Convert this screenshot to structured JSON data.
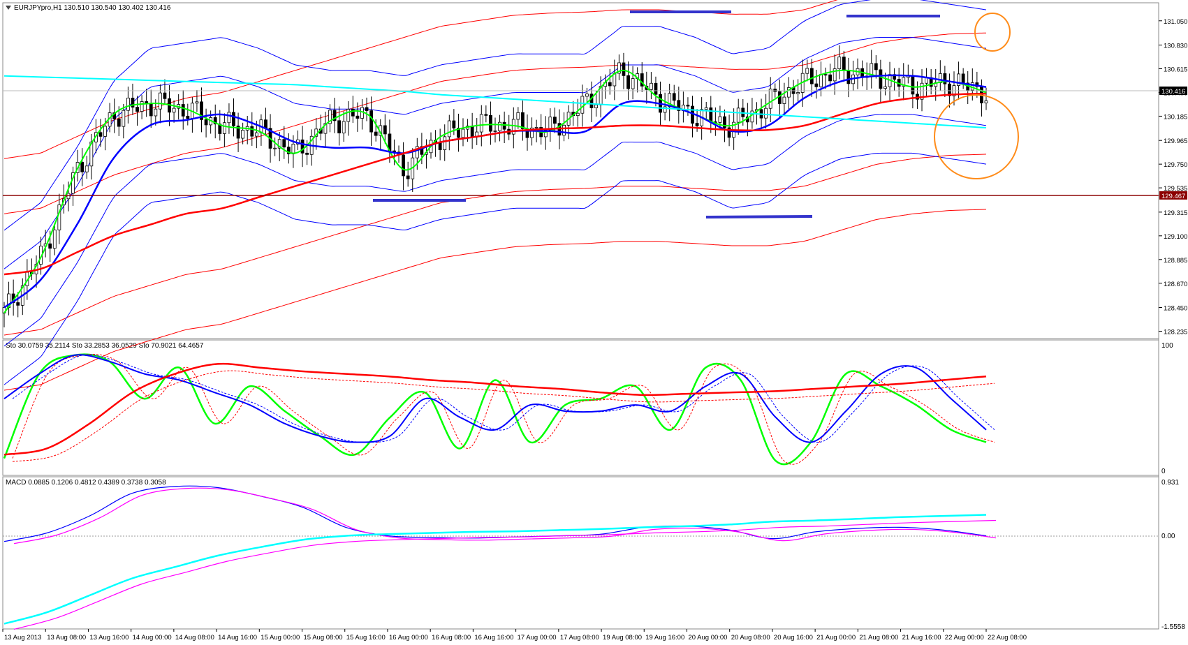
{
  "symbol_title": "EURJPYpro,H1  130.510 130.540 130.402 130.416",
  "price_axis": {
    "ticks": [
      "131.050",
      "130.830",
      "130.615",
      "130.400",
      "130.185",
      "129.965",
      "129.750",
      "129.535",
      "129.315",
      "129.100",
      "128.885",
      "128.670",
      "128.450",
      "128.235"
    ],
    "tick_values": [
      131.05,
      130.83,
      130.615,
      130.4,
      130.185,
      129.965,
      129.75,
      129.535,
      129.315,
      129.1,
      128.885,
      128.67,
      128.45,
      128.235
    ],
    "range": [
      128.2,
      131.15
    ],
    "current_price_label": "130.416",
    "current_price": 130.416,
    "support_label": "129.467",
    "support_price": 129.467
  },
  "colors": {
    "red": "#ff0000",
    "dark_red": "#8b0000",
    "blue": "#0000ff",
    "green": "#00ff00",
    "aqua": "#00ffff",
    "magenta": "#ff00ff",
    "orange": "#ff8c1a",
    "level": "#3333cc"
  },
  "stoch_panel": {
    "label": "Sto 30.0759 35.2114  Sto 33.2853 36.0529  Sto 70.9021 64.4657",
    "scale_top": "100",
    "scale_bottom": "0"
  },
  "macd_panel": {
    "label": "MACD 0.0885 0.1206 0.4812 0.4389 0.3738 0.3058",
    "scale_top": "0.931",
    "scale_zero": "0.00",
    "scale_bottom": "-1.5558"
  },
  "time_axis": [
    "13 Aug 2013",
    "13 Aug 08:00",
    "13 Aug 16:00",
    "14 Aug 00:00",
    "14 Aug 08:00",
    "14 Aug 16:00",
    "15 Aug 00:00",
    "15 Aug 08:00",
    "15 Aug 16:00",
    "16 Aug 00:00",
    "16 Aug 08:00",
    "16 Aug 16:00",
    "17 Aug 00:00",
    "17 Aug 08:00",
    "19 Aug 08:00",
    "19 Aug 16:00",
    "20 Aug 00:00",
    "20 Aug 08:00",
    "20 Aug 16:00",
    "21 Aug 00:00",
    "21 Aug 08:00",
    "21 Aug 16:00",
    "22 Aug 00:00",
    "22 Aug 08:00"
  ],
  "chart_data": {
    "type": "line",
    "title": "EURJPYpro,H1  130.510 130.540 130.402 130.416",
    "xlabel": "",
    "ylabel": "",
    "ylim": [
      128.2,
      131.15
    ],
    "grid": false,
    "series": [
      {
        "values": [
          128.4,
          128.9,
          129.7,
          130.2,
          130.3,
          130.25,
          130.1,
          130.05,
          129.85,
          130.15,
          130.2,
          129.7,
          130.0,
          130.1,
          130.1,
          130.05,
          130.3,
          130.6,
          130.35,
          130.2,
          130.1,
          130.3,
          130.5,
          130.6,
          130.55,
          130.45,
          130.5,
          130.4
        ]
      },
      {
        "values": [
          128.45,
          128.7,
          129.2,
          129.8,
          130.1,
          130.15,
          130.2,
          130.1,
          129.95,
          129.9,
          129.9,
          129.85,
          129.95,
          130.0,
          130.05,
          130.05,
          130.05,
          130.3,
          130.3,
          130.2,
          130.05,
          130.1,
          130.35,
          130.5,
          130.55,
          130.55,
          130.5,
          130.45
        ]
      },
      {
        "values": [
          128.75,
          128.8,
          128.95,
          129.1,
          129.2,
          129.3,
          129.35,
          129.45,
          129.55,
          129.65,
          129.75,
          129.85,
          129.95,
          130.0,
          130.05,
          130.07,
          130.08,
          130.1,
          130.1,
          130.08,
          130.06,
          130.06,
          130.1,
          130.2,
          130.3,
          130.35,
          130.38,
          130.39
        ]
      },
      {
        "values": [
          130.55,
          130.54,
          130.53,
          130.52,
          130.51,
          130.5,
          130.49,
          130.48,
          130.47,
          130.45,
          130.43,
          130.41,
          130.38,
          130.36,
          130.34,
          130.32,
          130.3,
          130.28,
          130.26,
          130.24,
          130.22,
          130.2,
          130.18,
          130.16,
          130.14,
          130.12,
          130.1,
          130.08
        ]
      }
    ],
    "stochastic": [
      {
        "values": [
          12,
          80,
          95,
          90,
          60,
          85,
          40,
          70,
          50,
          30,
          15,
          45,
          65,
          20,
          75,
          25,
          55,
          60,
          70,
          35,
          85,
          75,
          10,
          25,
          80,
          70,
          55,
          35,
          25
        ]
      },
      {
        "values": [
          60,
          80,
          95,
          90,
          80,
          75,
          65,
          55,
          40,
          30,
          25,
          30,
          60,
          45,
          35,
          55,
          50,
          50,
          55,
          50,
          70,
          80,
          45,
          25,
          50,
          80,
          85,
          60,
          35
        ]
      },
      {
        "values": [
          15,
          20,
          40,
          65,
          80,
          88,
          85,
          82,
          80,
          78,
          75,
          73,
          70,
          68,
          65,
          63,
          64,
          65,
          66,
          68,
          70,
          72,
          75,
          78
        ]
      }
    ],
    "macd": [
      {
        "values": [
          -0.05,
          0.1,
          0.4,
          0.8,
          0.92,
          0.9,
          0.75,
          0.55,
          0.2,
          0.05,
          0.02,
          0.01,
          0.03,
          0.05,
          0.08,
          0.2,
          0.22,
          0.15,
          0.0,
          0.12,
          0.18,
          0.2,
          0.15,
          0.05
        ]
      },
      {
        "values": [
          -1.5,
          -1.3,
          -1.0,
          -0.7,
          -0.5,
          -0.3,
          -0.15,
          -0.02,
          0.05,
          0.08,
          0.1,
          0.12,
          0.13,
          0.15,
          0.17,
          0.2,
          0.22,
          0.25,
          0.3,
          0.32,
          0.35,
          0.38,
          0.4,
          0.42
        ]
      }
    ]
  }
}
